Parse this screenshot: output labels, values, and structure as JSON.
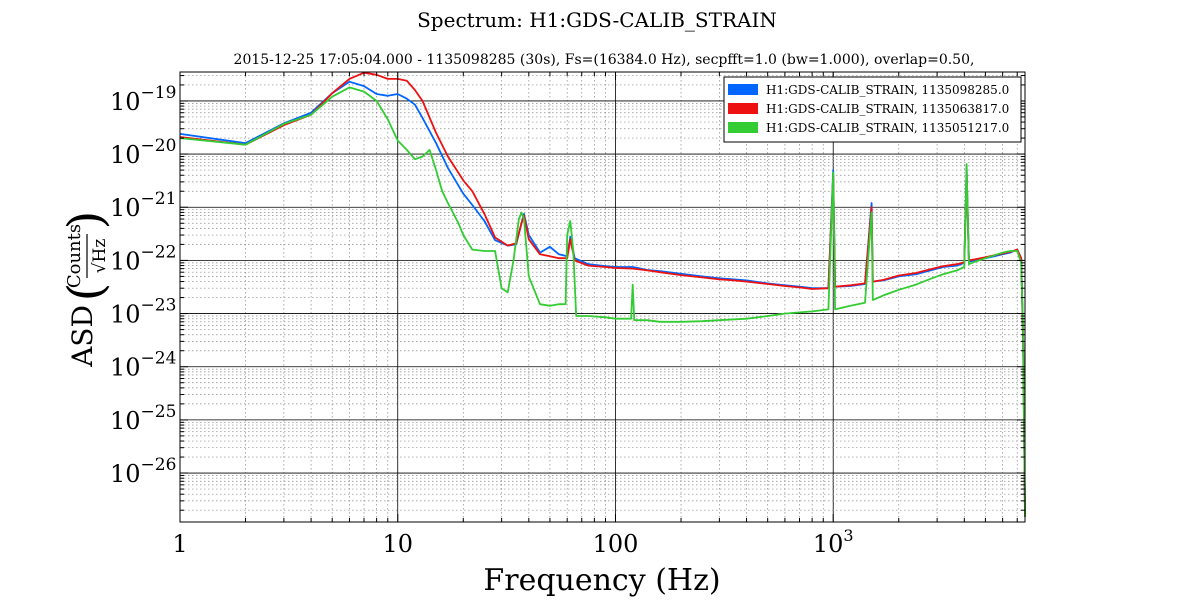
{
  "chart_data": {
    "type": "line",
    "title": "Spectrum: H1:GDS-CALIB_STRAIN",
    "subtitle": "2015-12-25 17:05:04.000 - 1135098285 (30s), Fs=(16384.0 Hz), secpfft=1.0 (bw=1.000), overlap=0.50,",
    "xlabel": "Frequency (Hz)",
    "ylabel": {
      "prefix": "ASD",
      "numerator": "Counts",
      "denominator": "√Hz"
    },
    "xscale": "log",
    "yscale": "log",
    "xlim": [
      1,
      7600
    ],
    "ylim": [
      1.2e-27,
      3.5e-19
    ],
    "xticks": [
      {
        "value": 1,
        "label": "1"
      },
      {
        "value": 10,
        "label": "10"
      },
      {
        "value": 100,
        "label": "100"
      },
      {
        "value": 1000,
        "label": "10",
        "exp": "3"
      }
    ],
    "yticks": [
      {
        "value": 1e-26,
        "label": "10",
        "exp": "−26"
      },
      {
        "value": 1e-25,
        "label": "10",
        "exp": "−25"
      },
      {
        "value": 1e-24,
        "label": "10",
        "exp": "−24"
      },
      {
        "value": 1e-23,
        "label": "10",
        "exp": "−23"
      },
      {
        "value": 1e-22,
        "label": "10",
        "exp": "−22"
      },
      {
        "value": 1e-21,
        "label": "10",
        "exp": "−21"
      },
      {
        "value": 1e-20,
        "label": "10",
        "exp": "−20"
      },
      {
        "value": 1e-19,
        "label": "10",
        "exp": "−19"
      }
    ],
    "grid": true,
    "legend_position": "top-right",
    "series": [
      {
        "name": "H1:GDS-CALIB_STRAIN, 1135098285.0",
        "color": "#0066ff",
        "points": [
          [
            1,
            2.4e-20
          ],
          [
            2,
            1.6e-20
          ],
          [
            3,
            3.8e-20
          ],
          [
            4,
            6e-20
          ],
          [
            5,
            1.4e-19
          ],
          [
            6,
            2.3e-19
          ],
          [
            7,
            1.9e-19
          ],
          [
            8,
            1.35e-19
          ],
          [
            9,
            1.25e-19
          ],
          [
            10,
            1.35e-19
          ],
          [
            11,
            1.1e-19
          ],
          [
            12,
            8.5e-20
          ],
          [
            13,
            4.8e-20
          ],
          [
            15,
            1.6e-20
          ],
          [
            17,
            5.5e-21
          ],
          [
            20,
            1.8e-21
          ],
          [
            22,
            1.1e-21
          ],
          [
            25,
            5.5e-22
          ],
          [
            28,
            2.4e-22
          ],
          [
            32,
            1.9e-22
          ],
          [
            35,
            2e-22
          ],
          [
            37,
            5e-22
          ],
          [
            38,
            7.5e-22
          ],
          [
            40,
            3e-22
          ],
          [
            45,
            1.4e-22
          ],
          [
            50,
            1.8e-22
          ],
          [
            55,
            1.3e-22
          ],
          [
            60,
            1.2e-22
          ],
          [
            62,
            2.8e-22
          ],
          [
            65,
            1.1e-22
          ],
          [
            75,
            8.5e-23
          ],
          [
            90,
            7.8e-23
          ],
          [
            100,
            7.5e-23
          ],
          [
            120,
            7.5e-23
          ],
          [
            140,
            6.6e-23
          ],
          [
            160,
            6.3e-23
          ],
          [
            200,
            5.6e-23
          ],
          [
            250,
            5e-23
          ],
          [
            300,
            4.6e-23
          ],
          [
            350,
            4.4e-23
          ],
          [
            400,
            4.2e-23
          ],
          [
            500,
            3.7e-23
          ],
          [
            600,
            3.4e-23
          ],
          [
            700,
            3.2e-23
          ],
          [
            800,
            3e-23
          ],
          [
            950,
            3e-23
          ],
          [
            1000,
            5e-21
          ],
          [
            1020,
            3.2e-23
          ],
          [
            1200,
            3.3e-23
          ],
          [
            1400,
            3.6e-23
          ],
          [
            1500,
            1.2e-21
          ],
          [
            1520,
            4e-23
          ],
          [
            1700,
            4.2e-23
          ],
          [
            2000,
            5e-23
          ],
          [
            2400,
            5.5e-23
          ],
          [
            2800,
            6.5e-23
          ],
          [
            3200,
            7.5e-23
          ],
          [
            3700,
            8e-23
          ],
          [
            4000,
            9e-23
          ],
          [
            4100,
            5.5e-21
          ],
          [
            4200,
            9.5e-23
          ],
          [
            4500,
            1e-22
          ],
          [
            5000,
            1.1e-22
          ],
          [
            5500,
            1.2e-22
          ],
          [
            6000,
            1.3e-22
          ],
          [
            6500,
            1.4e-22
          ],
          [
            7000,
            1.6e-22
          ],
          [
            7300,
            1.1e-22
          ],
          [
            7450,
            3e-24
          ],
          [
            7600,
            1.5e-27
          ]
        ]
      },
      {
        "name": "H1:GDS-CALIB_STRAIN, 1135063817.0",
        "color": "#ee1111",
        "points": [
          [
            1,
            2.1e-20
          ],
          [
            2,
            1.5e-20
          ],
          [
            3,
            3.5e-20
          ],
          [
            4,
            5.5e-20
          ],
          [
            5,
            1.4e-19
          ],
          [
            6,
            2.6e-19
          ],
          [
            7,
            3.4e-19
          ],
          [
            8,
            3.1e-19
          ],
          [
            9,
            2.6e-19
          ],
          [
            10,
            2.6e-19
          ],
          [
            11,
            2.4e-19
          ],
          [
            12,
            1.6e-19
          ],
          [
            13,
            1e-19
          ],
          [
            15,
            2.5e-20
          ],
          [
            17,
            9e-21
          ],
          [
            20,
            3.2e-21
          ],
          [
            22,
            2e-21
          ],
          [
            25,
            7.5e-22
          ],
          [
            28,
            2.7e-22
          ],
          [
            32,
            1.9e-22
          ],
          [
            35,
            2.1e-22
          ],
          [
            37,
            5e-22
          ],
          [
            38,
            7e-22
          ],
          [
            40,
            2.5e-22
          ],
          [
            45,
            1.3e-22
          ],
          [
            50,
            1.2e-22
          ],
          [
            55,
            1.1e-22
          ],
          [
            60,
            1.1e-22
          ],
          [
            62,
            2.5e-22
          ],
          [
            65,
            1e-22
          ],
          [
            75,
            8e-23
          ],
          [
            90,
            7.5e-23
          ],
          [
            100,
            7.2e-23
          ],
          [
            120,
            7e-23
          ],
          [
            140,
            6.5e-23
          ],
          [
            160,
            6e-23
          ],
          [
            200,
            5.3e-23
          ],
          [
            250,
            4.8e-23
          ],
          [
            300,
            4.4e-23
          ],
          [
            350,
            4.2e-23
          ],
          [
            400,
            4e-23
          ],
          [
            500,
            3.6e-23
          ],
          [
            600,
            3.3e-23
          ],
          [
            700,
            3.1e-23
          ],
          [
            800,
            2.9e-23
          ],
          [
            950,
            3e-23
          ],
          [
            1000,
            4e-21
          ],
          [
            1020,
            3.2e-23
          ],
          [
            1200,
            3.4e-23
          ],
          [
            1400,
            3.7e-23
          ],
          [
            1500,
            1e-21
          ],
          [
            1520,
            4e-23
          ],
          [
            1700,
            4.3e-23
          ],
          [
            2000,
            5.2e-23
          ],
          [
            2400,
            5.8e-23
          ],
          [
            2800,
            6.8e-23
          ],
          [
            3200,
            7.8e-23
          ],
          [
            3700,
            8.5e-23
          ],
          [
            4000,
            9.2e-23
          ],
          [
            4100,
            4.5e-21
          ],
          [
            4200,
            1e-22
          ],
          [
            4500,
            1.05e-22
          ],
          [
            5000,
            1.15e-22
          ],
          [
            5500,
            1.25e-22
          ],
          [
            6000,
            1.35e-22
          ],
          [
            6500,
            1.45e-22
          ],
          [
            7000,
            1.6e-22
          ],
          [
            7300,
            1.1e-22
          ],
          [
            7450,
            3e-24
          ],
          [
            7600,
            1.5e-27
          ]
        ]
      },
      {
        "name": "H1:GDS-CALIB_STRAIN, 1135051217.0",
        "color": "#33cc33",
        "points": [
          [
            1,
            2e-20
          ],
          [
            2,
            1.5e-20
          ],
          [
            3,
            3.7e-20
          ],
          [
            4,
            5.5e-20
          ],
          [
            5,
            1.2e-19
          ],
          [
            6,
            1.8e-19
          ],
          [
            7,
            1.5e-19
          ],
          [
            8,
            1e-19
          ],
          [
            9,
            4.5e-20
          ],
          [
            10,
            1.8e-20
          ],
          [
            11,
            1.2e-20
          ],
          [
            12,
            8e-21
          ],
          [
            13,
            9e-21
          ],
          [
            14,
            1.2e-20
          ],
          [
            15,
            5e-21
          ],
          [
            16,
            2e-21
          ],
          [
            17,
            1.2e-21
          ],
          [
            19,
            5e-22
          ],
          [
            20,
            3e-22
          ],
          [
            22,
            1.6e-22
          ],
          [
            25,
            1.5e-22
          ],
          [
            28,
            1.5e-22
          ],
          [
            30,
            3e-23
          ],
          [
            32,
            2.5e-23
          ],
          [
            34,
            1e-22
          ],
          [
            36,
            6e-22
          ],
          [
            37,
            8e-22
          ],
          [
            38,
            6e-22
          ],
          [
            40,
            5e-23
          ],
          [
            45,
            1.5e-23
          ],
          [
            50,
            1.4e-23
          ],
          [
            55,
            1.5e-23
          ],
          [
            59,
            1.5e-23
          ],
          [
            60,
            3e-22
          ],
          [
            62,
            5.5e-22
          ],
          [
            64,
            1.5e-22
          ],
          [
            66,
            9e-24
          ],
          [
            75,
            9e-24
          ],
          [
            90,
            8.5e-24
          ],
          [
            100,
            8e-24
          ],
          [
            118,
            8e-24
          ],
          [
            120,
            3.5e-23
          ],
          [
            122,
            7.5e-24
          ],
          [
            140,
            7.5e-24
          ],
          [
            160,
            7e-24
          ],
          [
            200,
            7e-24
          ],
          [
            250,
            7.2e-24
          ],
          [
            300,
            7.5e-24
          ],
          [
            400,
            8e-24
          ],
          [
            500,
            9e-24
          ],
          [
            600,
            1e-23
          ],
          [
            700,
            1.05e-23
          ],
          [
            800,
            1.1e-23
          ],
          [
            950,
            1.2e-23
          ],
          [
            1000,
            4.5e-21
          ],
          [
            1020,
            1.2e-23
          ],
          [
            1200,
            1.4e-23
          ],
          [
            1400,
            1.6e-23
          ],
          [
            1500,
            8e-22
          ],
          [
            1520,
            1.8e-23
          ],
          [
            1700,
            2.2e-23
          ],
          [
            2000,
            2.8e-23
          ],
          [
            2400,
            3.5e-23
          ],
          [
            2800,
            4.5e-23
          ],
          [
            3200,
            5.5e-23
          ],
          [
            3700,
            6.5e-23
          ],
          [
            4000,
            7.5e-23
          ],
          [
            4100,
            6.5e-21
          ],
          [
            4200,
            8.5e-23
          ],
          [
            4500,
            9.5e-23
          ],
          [
            5000,
            1.1e-22
          ],
          [
            5500,
            1.25e-22
          ],
          [
            6000,
            1.4e-22
          ],
          [
            6500,
            1.5e-22
          ],
          [
            7000,
            1.5e-22
          ],
          [
            7300,
            9e-23
          ],
          [
            7450,
            5e-24
          ],
          [
            7600,
            1.5e-27
          ]
        ]
      }
    ]
  }
}
